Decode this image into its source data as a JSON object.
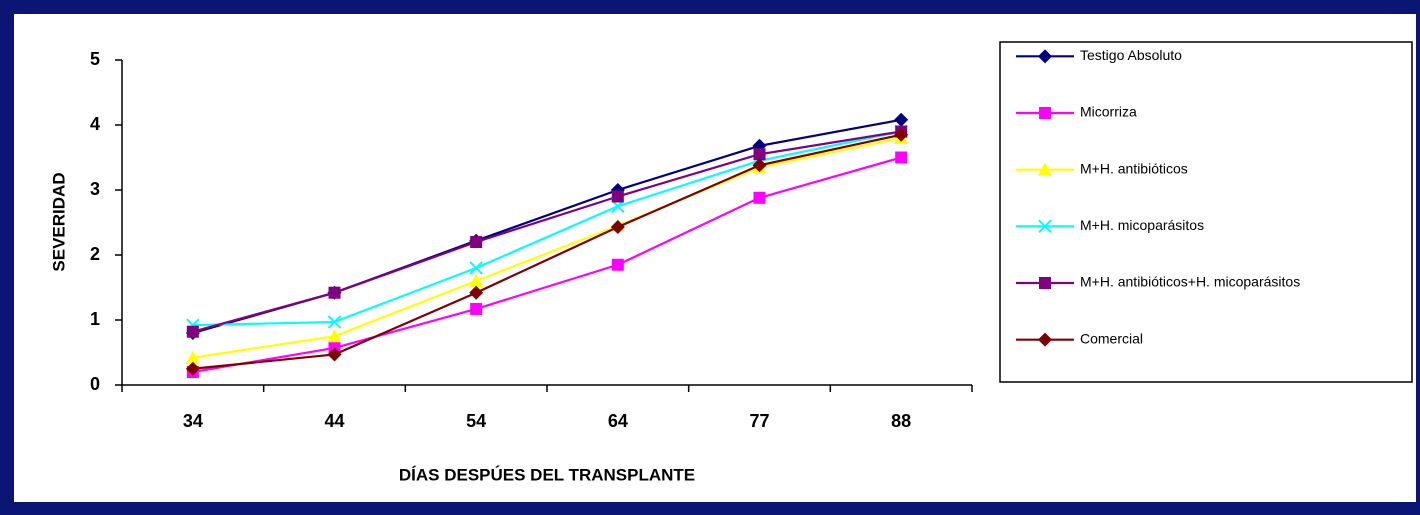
{
  "chart_data": {
    "type": "line",
    "categories": [
      "34",
      "44",
      "54",
      "64",
      "77",
      "88"
    ],
    "xlabel": "DÍAS DESPÚES DEL TRANSPLANTE",
    "ylabel": "SEVERIDAD",
    "ylim": [
      0,
      5
    ],
    "yticks": [
      0,
      1,
      2,
      3,
      4,
      5
    ],
    "legend": "right",
    "series": [
      {
        "name": "Testigo Absoluto",
        "color": "#000080",
        "marker": "diamond",
        "values": [
          0.8,
          1.42,
          2.22,
          3.0,
          3.68,
          4.08
        ]
      },
      {
        "name": "Micorriza",
        "color": "#ff00ff",
        "marker": "square",
        "values": [
          0.2,
          0.57,
          1.17,
          1.85,
          2.88,
          3.5
        ]
      },
      {
        "name": "M+H. antibióticos",
        "color": "#ffff00",
        "marker": "triangle",
        "values": [
          0.42,
          0.75,
          1.6,
          2.45,
          3.35,
          3.8
        ]
      },
      {
        "name": "M+H. micoparásitos",
        "color": "#00ffff",
        "marker": "x",
        "values": [
          0.92,
          0.97,
          1.8,
          2.75,
          3.45,
          3.9
        ]
      },
      {
        "name": "M+H. antibióticos+H. micoparásitos",
        "color": "#800080",
        "marker": "square",
        "values": [
          0.82,
          1.42,
          2.2,
          2.9,
          3.55,
          3.9
        ]
      },
      {
        "name": "Comercial",
        "color": "#800000",
        "marker": "diamond",
        "values": [
          0.25,
          0.47,
          1.42,
          2.43,
          3.38,
          3.85
        ]
      }
    ]
  }
}
